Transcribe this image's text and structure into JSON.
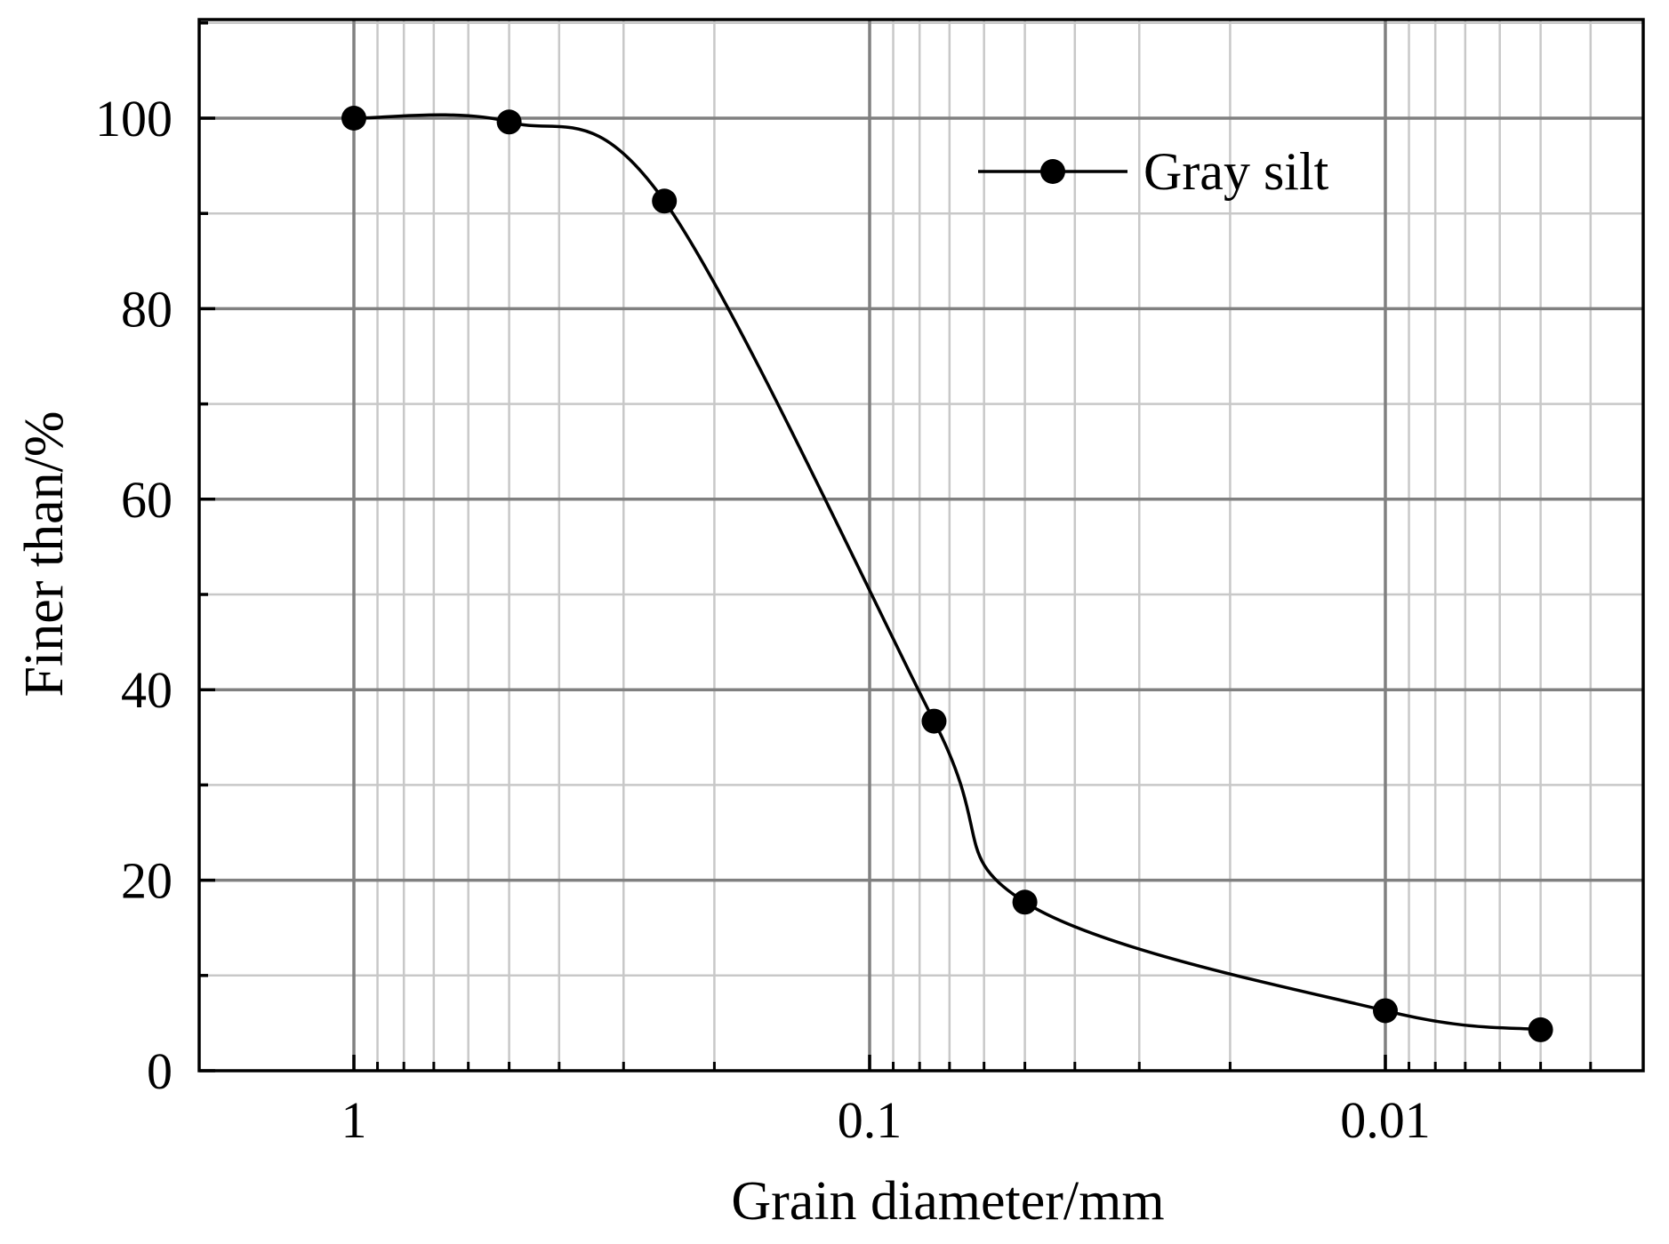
{
  "chart_data": {
    "type": "line",
    "title": "",
    "xlabel": "Grain diameter/mm",
    "ylabel": "Finer than/%",
    "x_scale": "log",
    "x_reversed": true,
    "xlim": [
      3.0,
      0.003
    ],
    "ylim": [
      0,
      100
    ],
    "x_ticks": [
      1,
      0.1,
      0.01
    ],
    "x_tick_labels": [
      "1",
      "0.1",
      "0.01"
    ],
    "y_ticks": [
      0,
      20,
      40,
      60,
      80,
      100
    ],
    "y_tick_labels": [
      "0",
      "20",
      "40",
      "60",
      "80",
      "100"
    ],
    "grid": true,
    "legend_position": "top-right",
    "series": [
      {
        "name": "Gray silt",
        "color": "#000000",
        "marker": "circle",
        "x": [
          1.0,
          0.5,
          0.25,
          0.075,
          0.05,
          0.01,
          0.005
        ],
        "y": [
          100,
          99.6,
          91.3,
          36.7,
          17.7,
          6.3,
          4.3
        ]
      }
    ]
  }
}
